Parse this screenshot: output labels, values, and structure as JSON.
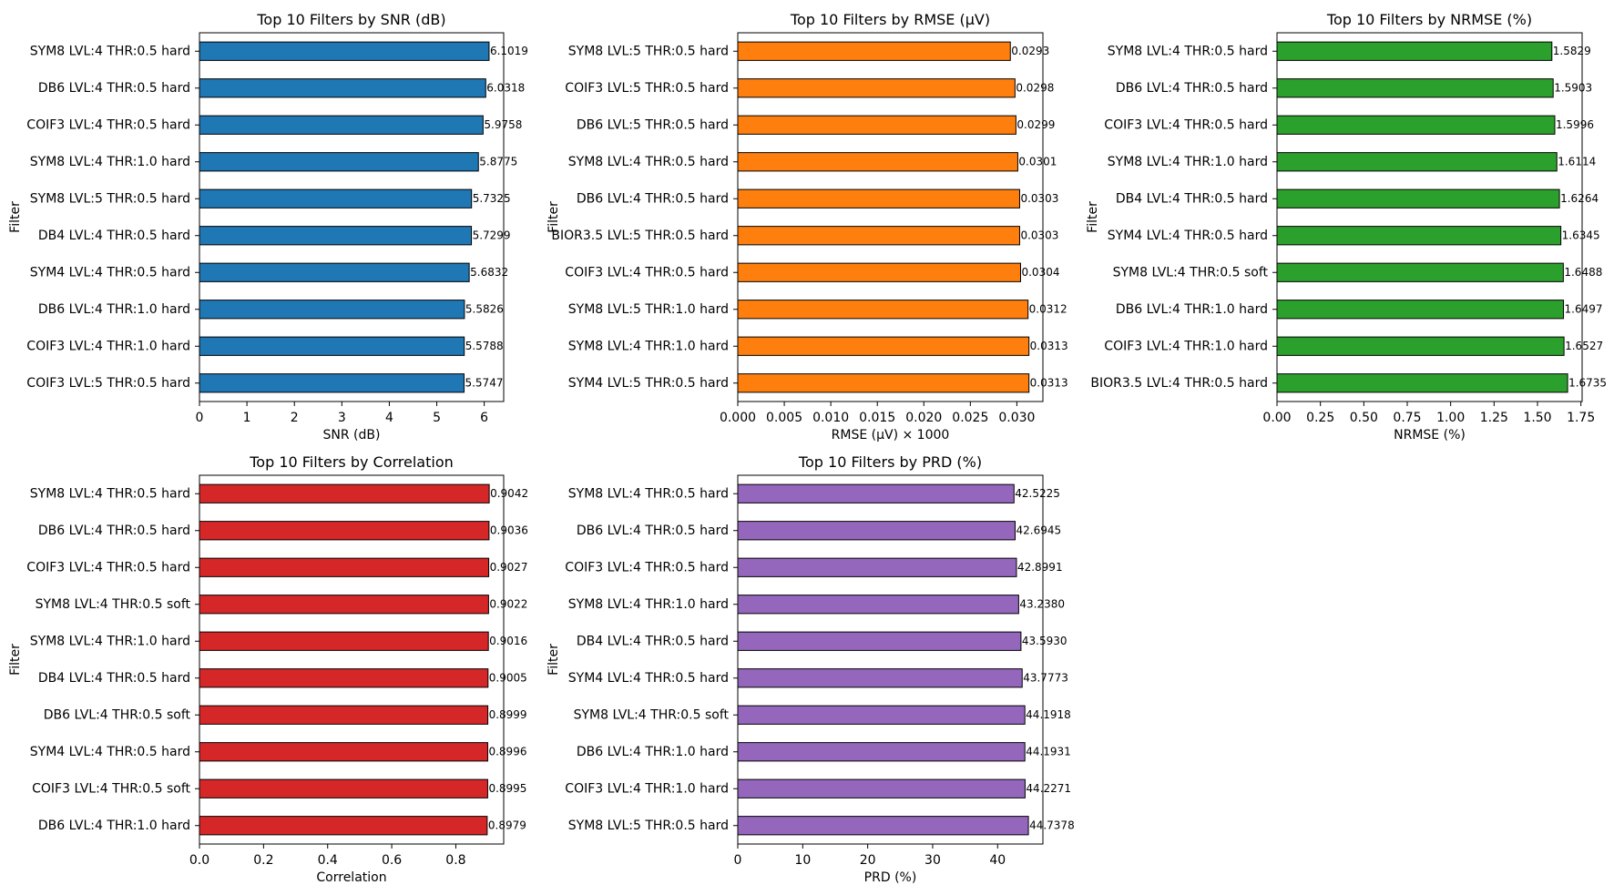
{
  "chart_data": [
    {
      "type": "bar",
      "orientation": "horizontal",
      "title": "Top 10 Filters by SNR (dB)",
      "xlabel": "SNR (dB)",
      "ylabel": "Filter",
      "color": "#1f77b4",
      "xlim": [
        0,
        6.41
      ],
      "xticks": [
        0,
        1,
        2,
        3,
        4,
        5,
        6
      ],
      "xtick_labels": [
        "0",
        "1",
        "2",
        "3",
        "4",
        "5",
        "6"
      ],
      "categories": [
        "SYM8 LVL:4 THR:0.5 hard",
        "DB6 LVL:4 THR:0.5 hard",
        "COIF3 LVL:4 THR:0.5 hard",
        "SYM8 LVL:4 THR:1.0 hard",
        "SYM8 LVL:5 THR:0.5 hard",
        "DB4 LVL:4 THR:0.5 hard",
        "SYM4 LVL:4 THR:0.5 hard",
        "DB6 LVL:4 THR:1.0 hard",
        "COIF3 LVL:4 THR:1.0 hard",
        "COIF3 LVL:5 THR:0.5 hard"
      ],
      "values": [
        6.1019,
        6.0318,
        5.9758,
        5.8775,
        5.7325,
        5.7299,
        5.6832,
        5.5826,
        5.5788,
        5.5747
      ],
      "value_labels": [
        "6.1019",
        "6.0318",
        "5.9758",
        "5.8775",
        "5.7325",
        "5.7299",
        "5.6832",
        "5.5826",
        "5.5788",
        "5.5747"
      ]
    },
    {
      "type": "bar",
      "orientation": "horizontal",
      "title": "Top 10 Filters by RMSE (µV)",
      "xlabel": "RMSE (µV) × 1000",
      "ylabel": "Filter",
      "color": "#ff7f0e",
      "xlim": [
        0,
        0.0328
      ],
      "xticks": [
        0,
        0.005,
        0.01,
        0.015,
        0.02,
        0.025,
        0.03
      ],
      "xtick_labels": [
        "0.000",
        "0.005",
        "0.010",
        "0.015",
        "0.020",
        "0.025",
        "0.030"
      ],
      "categories": [
        "SYM8 LVL:5 THR:0.5 hard",
        "COIF3 LVL:5 THR:0.5 hard",
        "DB6 LVL:5 THR:0.5 hard",
        "SYM8 LVL:4 THR:0.5 hard",
        "DB6 LVL:4 THR:0.5 hard",
        "BIOR3.5 LVL:5 THR:0.5 hard",
        "COIF3 LVL:4 THR:0.5 hard",
        "SYM8 LVL:5 THR:1.0 hard",
        "SYM8 LVL:4 THR:1.0 hard",
        "SYM4 LVL:5 THR:0.5 hard"
      ],
      "values": [
        0.0293,
        0.0298,
        0.0299,
        0.0301,
        0.0303,
        0.0303,
        0.0304,
        0.0312,
        0.0313,
        0.0313
      ],
      "value_labels": [
        "0.0293",
        "0.0298",
        "0.0299",
        "0.0301",
        "0.0303",
        "0.0303",
        "0.0304",
        "0.0312",
        "0.0313",
        "0.0313"
      ]
    },
    {
      "type": "bar",
      "orientation": "horizontal",
      "title": "Top 10 Filters by NRMSE (%)",
      "xlabel": "NRMSE (%)",
      "ylabel": "Filter",
      "color": "#2ca02c",
      "xlim": [
        0,
        1.757
      ],
      "xticks": [
        0,
        0.25,
        0.5,
        0.75,
        1.0,
        1.25,
        1.5,
        1.75
      ],
      "xtick_labels": [
        "0.00",
        "0.25",
        "0.50",
        "0.75",
        "1.00",
        "1.25",
        "1.50",
        "1.75"
      ],
      "categories": [
        "SYM8 LVL:4 THR:0.5 hard",
        "DB6 LVL:4 THR:0.5 hard",
        "COIF3 LVL:4 THR:0.5 hard",
        "SYM8 LVL:4 THR:1.0 hard",
        "DB4 LVL:4 THR:0.5 hard",
        "SYM4 LVL:4 THR:0.5 hard",
        "SYM8 LVL:4 THR:0.5 soft",
        "DB6 LVL:4 THR:1.0 hard",
        "COIF3 LVL:4 THR:1.0 hard",
        "BIOR3.5 LVL:4 THR:0.5 hard"
      ],
      "values": [
        1.5829,
        1.5903,
        1.5996,
        1.6114,
        1.6264,
        1.6345,
        1.6488,
        1.6497,
        1.6527,
        1.6735
      ],
      "value_labels": [
        "1.5829",
        "1.5903",
        "1.5996",
        "1.6114",
        "1.6264",
        "1.6345",
        "1.6488",
        "1.6497",
        "1.6527",
        "1.6735"
      ]
    },
    {
      "type": "bar",
      "orientation": "horizontal",
      "title": "Top 10 Filters by Correlation",
      "xlabel": "Correlation",
      "ylabel": "Filter",
      "color": "#d62728",
      "xlim": [
        0,
        0.9494
      ],
      "xticks": [
        0,
        0.2,
        0.4,
        0.6,
        0.8
      ],
      "xtick_labels": [
        "0.0",
        "0.2",
        "0.4",
        "0.6",
        "0.8"
      ],
      "categories": [
        "SYM8 LVL:4 THR:0.5 hard",
        "DB6 LVL:4 THR:0.5 hard",
        "COIF3 LVL:4 THR:0.5 hard",
        "SYM8 LVL:4 THR:0.5 soft",
        "SYM8 LVL:4 THR:1.0 hard",
        "DB4 LVL:4 THR:0.5 hard",
        "DB6 LVL:4 THR:0.5 soft",
        "SYM4 LVL:4 THR:0.5 hard",
        "COIF3 LVL:4 THR:0.5 soft",
        "DB6 LVL:4 THR:1.0 hard"
      ],
      "values": [
        0.9042,
        0.9036,
        0.9027,
        0.9022,
        0.9016,
        0.9005,
        0.8999,
        0.8996,
        0.8995,
        0.8979
      ],
      "value_labels": [
        "0.9042",
        "0.9036",
        "0.9027",
        "0.9022",
        "0.9016",
        "0.9005",
        "0.8999",
        "0.8996",
        "0.8995",
        "0.8979"
      ]
    },
    {
      "type": "bar",
      "orientation": "horizontal",
      "title": "Top 10 Filters by PRD (%)",
      "xlabel": "PRD (%)",
      "ylabel": "Filter",
      "color": "#9467bd",
      "xlim": [
        0,
        46.97
      ],
      "xticks": [
        0,
        10,
        20,
        30,
        40
      ],
      "xtick_labels": [
        "0",
        "10",
        "20",
        "30",
        "40"
      ],
      "categories": [
        "SYM8 LVL:4 THR:0.5 hard",
        "DB6 LVL:4 THR:0.5 hard",
        "COIF3 LVL:4 THR:0.5 hard",
        "SYM8 LVL:4 THR:1.0 hard",
        "DB4 LVL:4 THR:0.5 hard",
        "SYM4 LVL:4 THR:0.5 hard",
        "SYM8 LVL:4 THR:0.5 soft",
        "DB6 LVL:4 THR:1.0 hard",
        "COIF3 LVL:4 THR:1.0 hard",
        "SYM8 LVL:5 THR:0.5 hard"
      ],
      "values": [
        42.5225,
        42.6945,
        42.8991,
        43.238,
        43.593,
        43.7773,
        44.1918,
        44.1931,
        44.2271,
        44.7378
      ],
      "value_labels": [
        "42.5225",
        "42.6945",
        "42.8991",
        "43.2380",
        "43.5930",
        "43.7773",
        "44.1918",
        "44.1931",
        "44.2271",
        "44.7378"
      ]
    }
  ]
}
